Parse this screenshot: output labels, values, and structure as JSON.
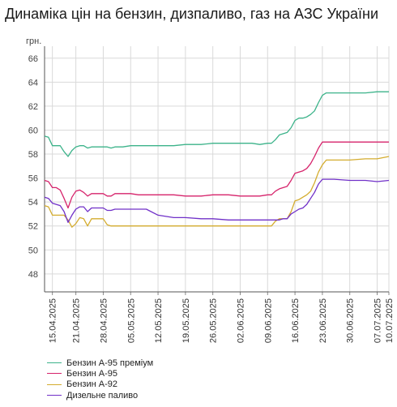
{
  "title": "Динаміка цін на бензин, дизпаливо, газ на АЗС України",
  "chart_data": {
    "type": "line",
    "title": "Динаміка цін на бензин, дизпаливо, газ на АЗС України",
    "ylabel": "грн.",
    "ylim": [
      46.5,
      67
    ],
    "y_ticks": [
      48,
      50,
      52,
      54,
      56,
      58,
      60,
      62,
      64,
      66
    ],
    "x_tick_labels": [
      "15.04.2025",
      "21.04.2025",
      "28.04.2025",
      "05.05.2025",
      "12.05.2025",
      "19.05.2025",
      "26.05.2025",
      "02.06.2025",
      "09.06.2025",
      "16.06.2025",
      "23.06.2025",
      "30.06.2025",
      "07.07.2025",
      "10.07.2025"
    ],
    "x_tick_days": [
      0,
      6,
      13,
      20,
      27,
      34,
      41,
      48,
      55,
      62,
      69,
      76,
      83,
      86
    ],
    "x_range_days": [
      -2,
      86
    ],
    "grid": true,
    "legend_position": "bottom",
    "series": [
      {
        "name": "Бензин А-95 преміум",
        "color": "#3cb38a",
        "x_days": [
          -2,
          -1,
          0,
          1,
          2,
          3,
          4,
          5,
          6,
          7,
          8,
          9,
          10,
          11,
          12,
          13,
          14,
          15,
          16,
          18,
          20,
          22,
          24,
          27,
          31,
          34,
          38,
          41,
          45,
          48,
          51,
          53,
          55,
          56,
          57,
          58,
          59,
          60,
          61,
          62,
          63,
          64,
          65,
          66,
          67,
          68,
          69,
          70,
          72,
          76,
          80,
          83,
          86
        ],
        "values": [
          59.5,
          59.4,
          58.7,
          58.7,
          58.7,
          58.2,
          57.8,
          58.3,
          58.6,
          58.7,
          58.7,
          58.5,
          58.6,
          58.6,
          58.6,
          58.6,
          58.6,
          58.5,
          58.6,
          58.6,
          58.7,
          58.7,
          58.7,
          58.7,
          58.7,
          58.8,
          58.8,
          58.9,
          58.9,
          58.9,
          58.9,
          58.8,
          58.9,
          58.9,
          59.2,
          59.6,
          59.7,
          59.8,
          60.2,
          60.8,
          61.0,
          61.0,
          61.1,
          61.3,
          61.6,
          62.3,
          62.9,
          63.1,
          63.1,
          63.1,
          63.1,
          63.2,
          63.2
        ]
      },
      {
        "name": "Бензин А-95",
        "color": "#d6236b",
        "x_days": [
          -2,
          -1,
          0,
          1,
          2,
          3,
          4,
          5,
          6,
          7,
          8,
          9,
          10,
          11,
          12,
          13,
          14,
          15,
          16,
          18,
          20,
          22,
          24,
          27,
          31,
          34,
          38,
          41,
          45,
          48,
          51,
          53,
          55,
          56,
          57,
          58,
          59,
          60,
          61,
          62,
          63,
          64,
          65,
          66,
          67,
          68,
          69,
          70,
          72,
          76,
          80,
          83,
          86
        ],
        "values": [
          55.8,
          55.7,
          55.2,
          55.2,
          55.0,
          54.3,
          53.5,
          54.4,
          54.9,
          55.0,
          54.8,
          54.5,
          54.7,
          54.7,
          54.7,
          54.7,
          54.5,
          54.5,
          54.7,
          54.7,
          54.7,
          54.6,
          54.6,
          54.6,
          54.6,
          54.5,
          54.5,
          54.6,
          54.6,
          54.5,
          54.5,
          54.5,
          54.6,
          54.6,
          54.9,
          55.1,
          55.2,
          55.3,
          55.8,
          56.4,
          56.5,
          56.6,
          56.8,
          57.2,
          57.8,
          58.5,
          59.0,
          59.0,
          59.0,
          59.0,
          59.0,
          59.0,
          59.0
        ]
      },
      {
        "name": "Бензин А-92",
        "color": "#d4ac2e",
        "x_days": [
          -2,
          -1,
          0,
          1,
          2,
          3,
          4,
          5,
          6,
          7,
          8,
          9,
          10,
          11,
          12,
          13,
          14,
          15,
          16,
          18,
          20,
          22,
          24,
          27,
          31,
          34,
          38,
          41,
          45,
          48,
          51,
          53,
          55,
          56,
          57,
          58,
          59,
          60,
          61,
          62,
          63,
          64,
          65,
          66,
          67,
          68,
          69,
          70,
          72,
          76,
          80,
          83,
          86
        ],
        "values": [
          53.7,
          53.6,
          52.9,
          52.9,
          52.9,
          52.9,
          52.5,
          51.9,
          52.2,
          52.7,
          52.6,
          52.0,
          52.6,
          52.6,
          52.6,
          52.6,
          52.1,
          52.0,
          52.0,
          52.0,
          52.0,
          52.0,
          52.0,
          52.0,
          52.0,
          52.0,
          52.0,
          52.0,
          52.0,
          52.0,
          52.0,
          52.0,
          52.0,
          52.0,
          52.4,
          52.6,
          52.6,
          52.6,
          53.2,
          54.1,
          54.2,
          54.4,
          54.6,
          54.9,
          55.6,
          56.5,
          57.1,
          57.5,
          57.5,
          57.5,
          57.6,
          57.6,
          57.8
        ]
      },
      {
        "name": "Дизельне паливо",
        "color": "#7030c8",
        "x_days": [
          -2,
          -1,
          0,
          1,
          2,
          3,
          4,
          5,
          6,
          7,
          8,
          9,
          10,
          11,
          12,
          13,
          14,
          15,
          16,
          18,
          20,
          22,
          24,
          27,
          31,
          34,
          38,
          41,
          45,
          48,
          51,
          53,
          55,
          56,
          57,
          58,
          59,
          60,
          61,
          62,
          63,
          64,
          65,
          66,
          67,
          68,
          69,
          70,
          72,
          76,
          80,
          83,
          86
        ],
        "values": [
          54.4,
          54.3,
          53.9,
          53.8,
          53.7,
          53.2,
          52.3,
          52.9,
          53.4,
          53.6,
          53.6,
          53.2,
          53.5,
          53.5,
          53.5,
          53.5,
          53.3,
          53.3,
          53.4,
          53.4,
          53.4,
          53.4,
          53.4,
          52.9,
          52.7,
          52.7,
          52.6,
          52.6,
          52.5,
          52.5,
          52.5,
          52.5,
          52.5,
          52.5,
          52.5,
          52.5,
          52.6,
          52.6,
          53.0,
          53.2,
          53.4,
          53.5,
          53.8,
          54.3,
          54.8,
          55.5,
          55.9,
          55.9,
          55.9,
          55.8,
          55.8,
          55.7,
          55.8
        ]
      }
    ]
  }
}
